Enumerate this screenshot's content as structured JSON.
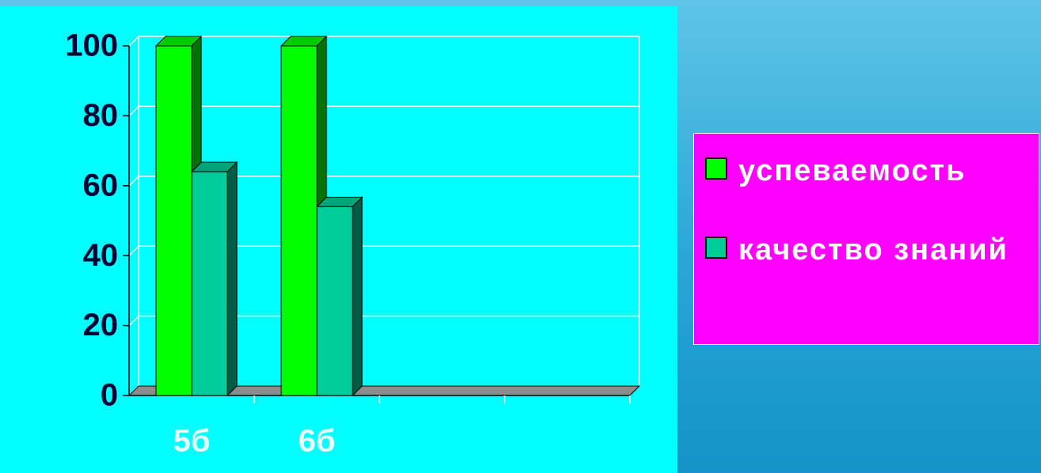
{
  "chart_data": {
    "type": "bar3d",
    "categories": [
      "5б",
      "6б",
      null,
      null
    ],
    "series": [
      {
        "name": "успеваемость",
        "color": "#00ff00",
        "values": [
          100,
          100,
          null,
          null
        ]
      },
      {
        "name": "качество знаний",
        "color": "#00cc99",
        "values": [
          64,
          54,
          null,
          null
        ]
      }
    ],
    "ylim": [
      0,
      100
    ],
    "yticks": [
      0,
      20,
      40,
      60,
      80,
      100
    ],
    "grid": true,
    "legend": "right"
  }
}
